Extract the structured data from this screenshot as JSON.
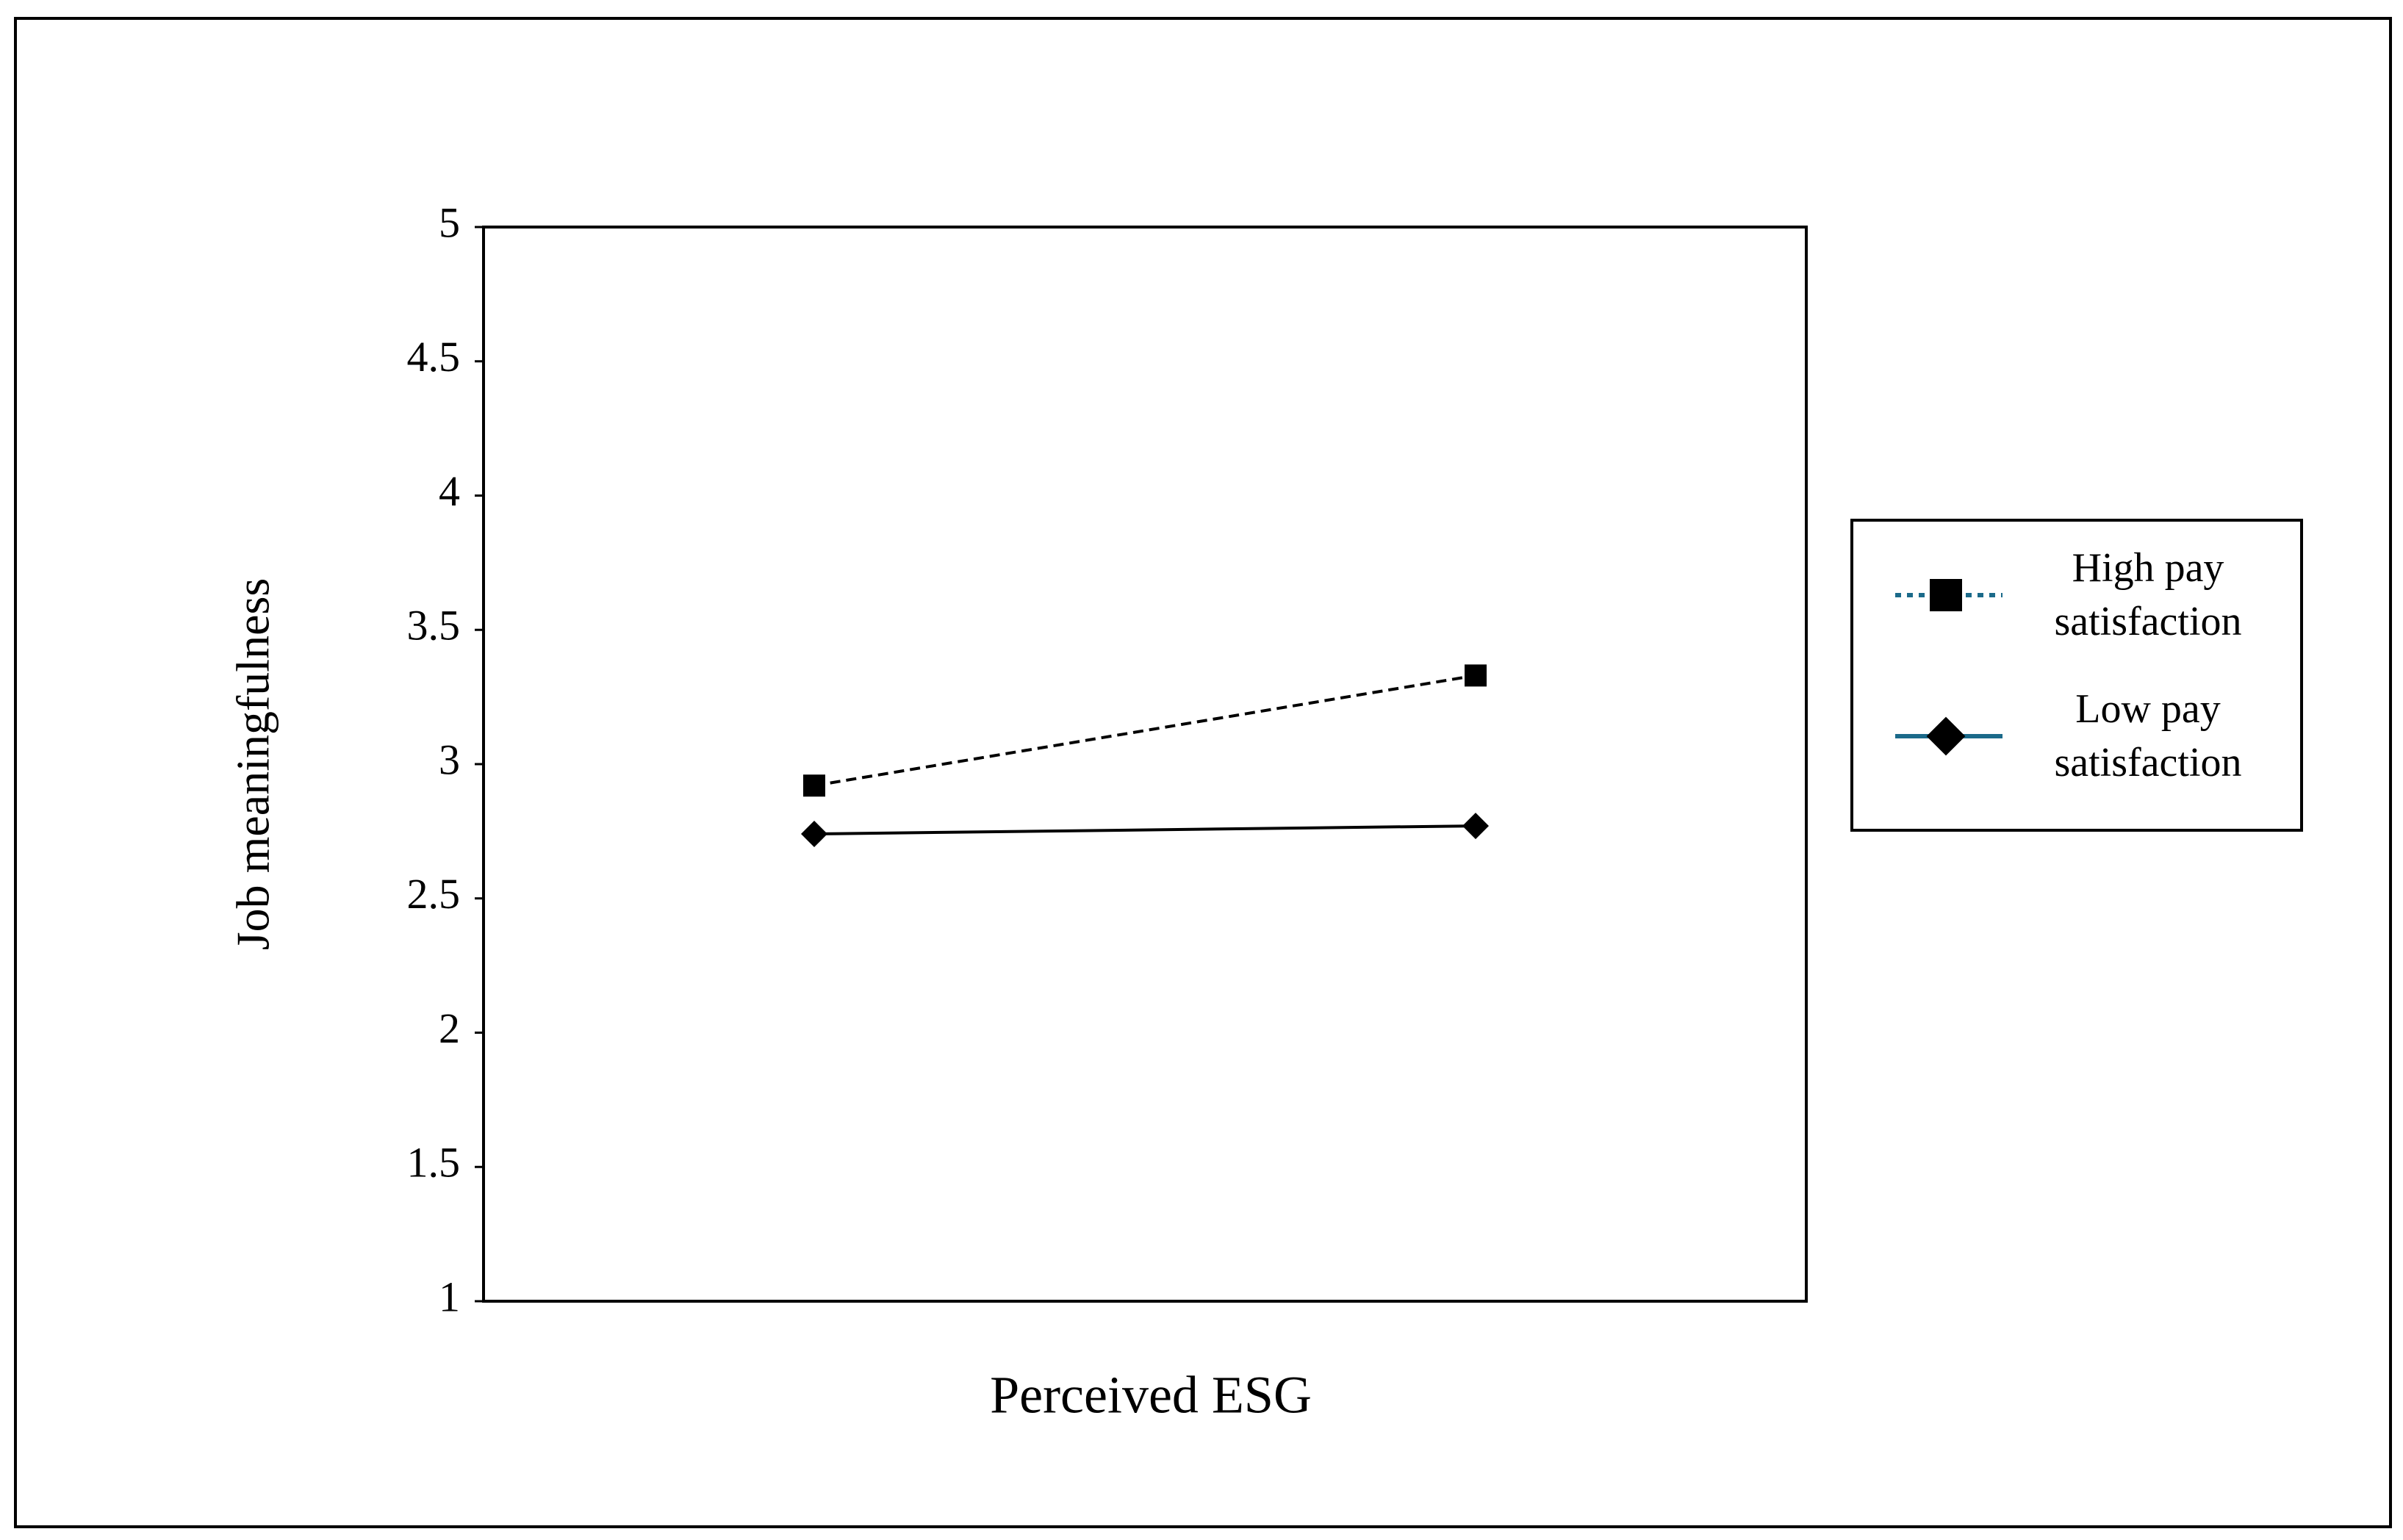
{
  "chart_data": {
    "type": "line",
    "x_label": "Perceived ESG",
    "y_label": "Job meaningfulness",
    "categories": [
      null,
      null
    ],
    "series": [
      {
        "name": "High pay satisfaction",
        "color": "#000000",
        "dash": "dashed",
        "marker": "square",
        "values": [
          2.92,
          3.33
        ]
      },
      {
        "name": "Low pay satisfaction",
        "color": "#000000",
        "dash": "solid",
        "marker": "diamond",
        "values": [
          2.74,
          2.77
        ]
      }
    ],
    "legend_line_color": "#1b6a8a",
    "ylim": [
      1,
      5
    ],
    "yticks": [
      1,
      1.5,
      2,
      2.5,
      3,
      3.5,
      4,
      4.5,
      5
    ],
    "grid": false,
    "legend": "right"
  }
}
